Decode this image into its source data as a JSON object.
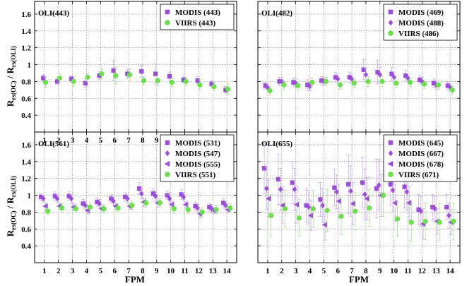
{
  "figure": {
    "ylabel_main": "R",
    "ylabel_sub1": "rs(OC)",
    "ylabel_mid": " / R",
    "ylabel_sub2": "rs(OLI)",
    "xlabel": "FPM"
  },
  "chart_data": [
    {
      "type": "scatter",
      "title": "OLI(443)",
      "x": [
        1,
        2,
        3,
        4,
        5,
        6,
        7,
        8,
        9,
        10,
        11,
        12,
        13,
        14
      ],
      "ylim": [
        0.2,
        1.75
      ],
      "yticks": [
        0.4,
        0.6,
        0.8,
        1.0,
        1.2,
        1.4,
        1.6
      ],
      "ytick_labels": [
        "0.4",
        "0.6",
        "0.8",
        "1",
        "1.2",
        "1.4",
        "1.6"
      ],
      "xtick_labels": [
        "1",
        "2",
        "3",
        "4",
        "5",
        "6",
        "7",
        "8",
        "9",
        "10",
        "11",
        "12",
        "13",
        "14"
      ],
      "grid": true,
      "legend_position": "top-right",
      "series": [
        {
          "name": "MODIS (443)",
          "marker": "square",
          "color": "#9b4fd9",
          "values": [
            0.84,
            0.8,
            0.83,
            0.78,
            0.87,
            0.93,
            0.89,
            0.92,
            0.89,
            0.86,
            0.82,
            0.81,
            0.77,
            0.7
          ],
          "err": [
            0.04,
            0.04,
            0.04,
            0.05,
            0.05,
            0.12,
            0.05,
            0.07,
            0.12,
            0.05,
            0.04,
            0.05,
            0.04,
            0.04
          ]
        },
        {
          "name": "VIIRS (443)",
          "marker": "circle",
          "color": "#6ae04a",
          "values": [
            0.79,
            0.84,
            0.8,
            0.85,
            0.89,
            0.87,
            0.88,
            0.81,
            0.81,
            0.79,
            0.8,
            0.76,
            0.74,
            0.71
          ],
          "err": [
            0.06,
            0.05,
            0.06,
            0.05,
            0.06,
            0.1,
            0.07,
            0.05,
            0.06,
            0.05,
            0.05,
            0.06,
            0.05,
            0.06
          ]
        }
      ]
    },
    {
      "type": "scatter",
      "title": "OLI(482)",
      "x": [
        1,
        2,
        3,
        4,
        5,
        6,
        7,
        8,
        9,
        10,
        11,
        12,
        13,
        14
      ],
      "ylim": [
        0.2,
        1.75
      ],
      "yticks": [
        0.4,
        0.6,
        0.8,
        1.0,
        1.2,
        1.4,
        1.6
      ],
      "ytick_labels": [
        "",
        "",
        "",
        "",
        "",
        "",
        ""
      ],
      "xtick_labels": [
        "",
        "",
        "",
        "",
        "",
        "",
        "",
        "",
        "",
        "",
        "",
        "",
        "",
        ""
      ],
      "grid": true,
      "legend_position": "top-right",
      "series": [
        {
          "name": "MODIS (469)",
          "marker": "square",
          "color": "#9b4fd9",
          "values": [
            0.75,
            0.8,
            0.79,
            0.76,
            0.81,
            0.85,
            0.85,
            0.94,
            0.91,
            0.89,
            0.87,
            0.82,
            0.78,
            0.75
          ],
          "err": [
            0.04,
            0.05,
            0.05,
            0.06,
            0.05,
            0.06,
            0.06,
            0.12,
            0.14,
            0.08,
            0.06,
            0.05,
            0.05,
            0.05
          ]
        },
        {
          "name": "MODIS (488)",
          "marker": "diamond",
          "color": "#9b4fd9",
          "values": [
            0.73,
            0.8,
            0.78,
            0.74,
            0.8,
            0.83,
            0.83,
            0.88,
            0.88,
            0.85,
            0.84,
            0.8,
            0.76,
            0.73
          ],
          "err": [
            0.04,
            0.05,
            0.05,
            0.05,
            0.05,
            0.06,
            0.06,
            0.08,
            0.09,
            0.06,
            0.05,
            0.05,
            0.05,
            0.05
          ]
        },
        {
          "name": "VIIRS (486)",
          "marker": "circle",
          "color": "#6ae04a",
          "values": [
            0.69,
            0.76,
            0.75,
            0.79,
            0.8,
            0.76,
            0.78,
            0.8,
            0.8,
            0.78,
            0.79,
            0.77,
            0.76,
            0.7
          ],
          "err": [
            0.05,
            0.05,
            0.05,
            0.05,
            0.05,
            0.05,
            0.05,
            0.06,
            0.06,
            0.05,
            0.05,
            0.05,
            0.05,
            0.05
          ]
        }
      ]
    },
    {
      "type": "scatter",
      "title": "OLI(561)",
      "x": [
        1,
        2,
        3,
        4,
        5,
        6,
        7,
        8,
        9,
        10,
        11,
        12,
        13,
        14
      ],
      "ylim": [
        0.2,
        1.75
      ],
      "yticks": [
        0.4,
        0.6,
        0.8,
        1.0,
        1.2,
        1.4,
        1.6
      ],
      "ytick_labels": [
        "0.4",
        "0.6",
        "0.8",
        "1",
        "1.2",
        "1.4",
        "1.6"
      ],
      "xtick_labels": [
        "1",
        "2",
        "3",
        "4",
        "5",
        "6",
        "7",
        "8",
        "9",
        "10",
        "11",
        "12",
        "13",
        "14"
      ],
      "grid": true,
      "legend_position": "top-right",
      "series": [
        {
          "name": "MODIS (531)",
          "marker": "square",
          "color": "#9b4fd9",
          "values": [
            0.98,
            0.99,
            0.99,
            0.9,
            0.92,
            0.96,
            0.98,
            1.08,
            1.02,
            1.0,
            1.01,
            0.87,
            0.86,
            0.91
          ],
          "err": [
            0.04,
            0.05,
            0.05,
            0.05,
            0.05,
            0.05,
            0.05,
            0.07,
            0.06,
            0.05,
            0.06,
            0.05,
            0.05,
            0.05
          ]
        },
        {
          "name": "MODIS (547)",
          "marker": "diamond",
          "color": "#9b4fd9",
          "values": [
            0.96,
            0.96,
            0.96,
            0.88,
            0.9,
            0.93,
            0.96,
            1.02,
            0.99,
            0.96,
            0.98,
            0.85,
            0.84,
            0.88
          ],
          "err": [
            0.04,
            0.05,
            0.05,
            0.05,
            0.05,
            0.05,
            0.05,
            0.06,
            0.06,
            0.05,
            0.05,
            0.05,
            0.05,
            0.05
          ]
        },
        {
          "name": "MODIS (555)",
          "marker": "triangle-left",
          "color": "#9b4fd9",
          "values": [
            0.87,
            0.87,
            0.86,
            0.82,
            0.84,
            0.87,
            0.87,
            0.92,
            0.91,
            0.89,
            0.89,
            0.78,
            0.82,
            0.83
          ],
          "err": [
            0.04,
            0.04,
            0.04,
            0.04,
            0.04,
            0.04,
            0.04,
            0.05,
            0.05,
            0.04,
            0.04,
            0.05,
            0.04,
            0.04
          ]
        },
        {
          "name": "VIIRS (551)",
          "marker": "circle",
          "color": "#6ae04a",
          "values": [
            0.81,
            0.85,
            0.84,
            0.86,
            0.84,
            0.85,
            0.88,
            0.91,
            0.91,
            0.84,
            0.83,
            0.8,
            0.83,
            0.85
          ],
          "err": [
            0.04,
            0.05,
            0.04,
            0.05,
            0.05,
            0.05,
            0.05,
            0.05,
            0.05,
            0.05,
            0.05,
            0.05,
            0.05,
            0.05
          ]
        }
      ]
    },
    {
      "type": "scatter",
      "title": "OLI(655)",
      "x": [
        1,
        2,
        3,
        4,
        5,
        6,
        7,
        8,
        9,
        10,
        11,
        12,
        13,
        14
      ],
      "ylim": [
        0.2,
        1.75
      ],
      "yticks": [
        0.4,
        0.6,
        0.8,
        1.0,
        1.2,
        1.4,
        1.6
      ],
      "ytick_labels": [
        "",
        "",
        "",
        "",
        "",
        "",
        ""
      ],
      "xtick_labels": [
        "1",
        "2",
        "3",
        "4",
        "5",
        "6",
        "7",
        "8",
        "9",
        "10",
        "11",
        "12",
        "13",
        "14"
      ],
      "grid": true,
      "legend_position": "top-right",
      "series": [
        {
          "name": "MODIS (645)",
          "marker": "square",
          "color": "#9b4fd9",
          "values": [
            1.32,
            1.19,
            1.15,
            0.88,
            0.95,
            1.09,
            1.13,
            1.15,
            1.08,
            1.13,
            1.1,
            0.83,
            0.86,
            0.86
          ],
          "err": [
            0.3,
            0.3,
            0.25,
            0.2,
            0.2,
            0.22,
            0.35,
            0.3,
            0.35,
            0.25,
            0.25,
            0.18,
            0.15,
            0.15
          ]
        },
        {
          "name": "MODIS (667)",
          "marker": "diamond",
          "color": "#9b4fd9",
          "values": [
            1.08,
            1.07,
            1.07,
            0.86,
            0.88,
            1.04,
            1.05,
            1.01,
            1.12,
            1.06,
            1.04,
            0.81,
            0.84,
            0.76
          ],
          "err": [
            0.25,
            0.25,
            0.25,
            0.2,
            0.2,
            0.2,
            0.3,
            0.3,
            0.3,
            0.25,
            0.22,
            0.18,
            0.15,
            0.15
          ]
        },
        {
          "name": "MODIS (678)",
          "marker": "triangle-left",
          "color": "#9b4fd9",
          "values": [
            0.96,
            0.88,
            0.89,
            0.76,
            0.65,
            0.93,
            0.9,
            0.96,
            1.0,
            0.91,
            0.91,
            0.66,
            0.69,
            0.68
          ],
          "err": [
            0.22,
            0.22,
            0.22,
            0.18,
            0.18,
            0.2,
            0.25,
            0.25,
            0.25,
            0.22,
            0.2,
            0.18,
            0.15,
            0.15
          ]
        },
        {
          "name": "VIIRS (671)",
          "marker": "circle",
          "color": "#6ae04a",
          "values": [
            0.76,
            0.84,
            0.73,
            0.84,
            0.82,
            0.75,
            0.81,
            0.85,
            1.0,
            0.72,
            0.68,
            0.69,
            0.68,
            0.69
          ],
          "err": [
            0.25,
            0.22,
            0.22,
            0.22,
            0.25,
            0.22,
            0.22,
            0.22,
            0.25,
            0.2,
            0.22,
            0.22,
            0.22,
            0.22
          ]
        }
      ]
    }
  ]
}
